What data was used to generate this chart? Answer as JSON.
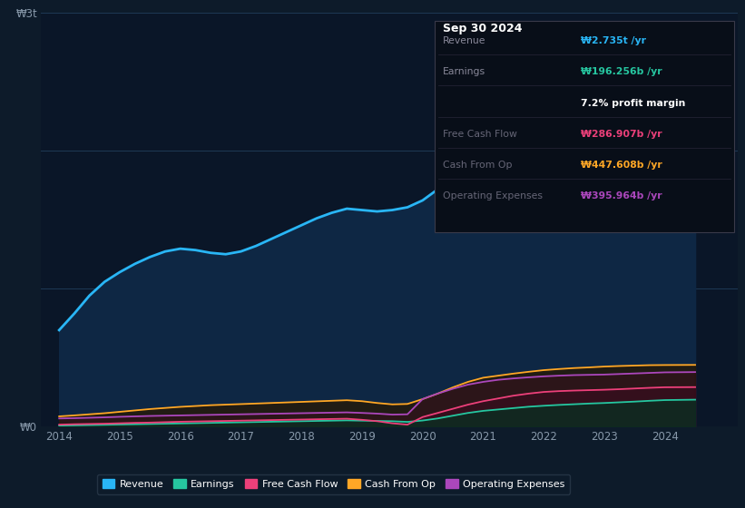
{
  "bg_color": "#0d1b2a",
  "plot_bg_color": "#0a1628",
  "years": [
    2014.0,
    2014.25,
    2014.5,
    2014.75,
    2015.0,
    2015.25,
    2015.5,
    2015.75,
    2016.0,
    2016.25,
    2016.5,
    2016.75,
    2017.0,
    2017.25,
    2017.5,
    2017.75,
    2018.0,
    2018.25,
    2018.5,
    2018.75,
    2019.0,
    2019.25,
    2019.5,
    2019.75,
    2020.0,
    2020.25,
    2020.5,
    2020.75,
    2021.0,
    2021.25,
    2021.5,
    2021.75,
    2022.0,
    2022.25,
    2022.5,
    2022.75,
    2023.0,
    2023.25,
    2023.5,
    2023.75,
    2024.0,
    2024.5
  ],
  "revenue": [
    700,
    820,
    950,
    1050,
    1120,
    1180,
    1230,
    1270,
    1290,
    1280,
    1260,
    1250,
    1270,
    1310,
    1360,
    1410,
    1460,
    1510,
    1550,
    1580,
    1570,
    1560,
    1570,
    1590,
    1640,
    1720,
    1820,
    1940,
    2030,
    2100,
    2160,
    2210,
    2250,
    2290,
    2330,
    2360,
    2390,
    2450,
    2530,
    2610,
    2700,
    2735
  ],
  "earnings": [
    8,
    10,
    12,
    14,
    16,
    18,
    20,
    22,
    24,
    26,
    28,
    30,
    32,
    34,
    36,
    38,
    40,
    42,
    44,
    46,
    44,
    42,
    40,
    35,
    45,
    60,
    80,
    100,
    115,
    125,
    135,
    145,
    152,
    158,
    163,
    168,
    172,
    177,
    182,
    188,
    193,
    196
  ],
  "free_cash_flow": [
    15,
    18,
    20,
    22,
    25,
    28,
    30,
    33,
    36,
    38,
    40,
    42,
    44,
    46,
    48,
    50,
    52,
    54,
    56,
    58,
    50,
    40,
    25,
    15,
    70,
    100,
    130,
    160,
    185,
    205,
    225,
    240,
    252,
    258,
    262,
    265,
    268,
    272,
    277,
    282,
    286,
    287
  ],
  "cash_from_op": [
    75,
    82,
    90,
    98,
    108,
    118,
    128,
    136,
    144,
    150,
    156,
    160,
    164,
    168,
    172,
    176,
    180,
    184,
    188,
    192,
    185,
    172,
    162,
    165,
    200,
    240,
    285,
    325,
    355,
    370,
    385,
    398,
    410,
    418,
    425,
    430,
    436,
    440,
    443,
    446,
    447,
    448
  ],
  "operating_expenses": [
    60,
    62,
    65,
    68,
    72,
    75,
    78,
    80,
    82,
    84,
    86,
    88,
    90,
    92,
    94,
    96,
    98,
    100,
    102,
    104,
    100,
    95,
    88,
    90,
    200,
    240,
    275,
    305,
    325,
    340,
    350,
    358,
    365,
    370,
    374,
    376,
    378,
    382,
    386,
    390,
    394,
    396
  ],
  "revenue_color": "#29b6f6",
  "earnings_color": "#26c6a0",
  "free_cash_flow_color": "#ec407a",
  "cash_from_op_color": "#ffa726",
  "operating_expenses_color": "#ab47bc",
  "revenue_fill": "#0e2744",
  "earnings_fill": "#0d3b30",
  "fcf_fill": "#4a0a1e",
  "cfo_fill": "#3d2200",
  "opex_fill": "#2d0a40",
  "info_box": {
    "title": "Sep 30 2024",
    "rows": [
      {
        "label": "Revenue",
        "value": "₩2.735t /yr",
        "value_color": "#29b6f6",
        "dim": false
      },
      {
        "label": "Earnings",
        "value": "₩196.256b /yr",
        "value_color": "#26c6a0",
        "dim": false
      },
      {
        "label": "",
        "value": "7.2% profit margin",
        "value_color": "#ffffff",
        "dim": false
      },
      {
        "label": "Free Cash Flow",
        "value": "₩286.907b /yr",
        "value_color": "#ec407a",
        "dim": true
      },
      {
        "label": "Cash From Op",
        "value": "₩447.608b /yr",
        "value_color": "#ffa726",
        "dim": true
      },
      {
        "label": "Operating Expenses",
        "value": "₩395.964b /yr",
        "value_color": "#ab47bc",
        "dim": true
      }
    ]
  },
  "ylim": [
    0,
    3000
  ],
  "xlim": [
    2013.7,
    2025.2
  ],
  "yticks": [
    0,
    3000
  ],
  "ytick_labels": [
    "₩0",
    "₩3t"
  ],
  "grid_yticks": [
    0,
    1000,
    2000,
    3000
  ],
  "xtick_years": [
    2014,
    2015,
    2016,
    2017,
    2018,
    2019,
    2020,
    2021,
    2022,
    2023,
    2024
  ],
  "legend": [
    {
      "label": "Revenue",
      "color": "#29b6f6"
    },
    {
      "label": "Earnings",
      "color": "#26c6a0"
    },
    {
      "label": "Free Cash Flow",
      "color": "#ec407a"
    },
    {
      "label": "Cash From Op",
      "color": "#ffa726"
    },
    {
      "label": "Operating Expenses",
      "color": "#ab47bc"
    }
  ]
}
